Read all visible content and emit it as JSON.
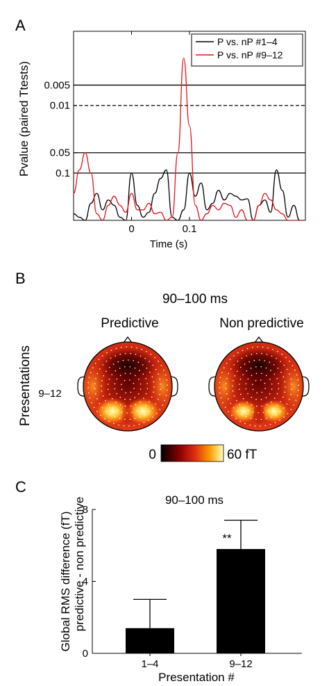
{
  "panels": {
    "a": {
      "letter": "A"
    },
    "b": {
      "letter": "B",
      "title": "90–100 ms",
      "column_labels": [
        "Predictive",
        "Non predictive"
      ],
      "row_label": "Presentations",
      "row_value": "9–12",
      "colorbar": {
        "min_label": "0",
        "max_label": "60 fT"
      }
    },
    "c": {
      "letter": "C"
    }
  },
  "chart_data": [
    {
      "type": "line",
      "ylabel": "Pvalue (paired Ttests)",
      "xlabel": "Time (s)",
      "x_ticks": [
        "0",
        "0.1"
      ],
      "x_tick_values": [
        0,
        0.1
      ],
      "xlim": [
        -0.1,
        0.3
      ],
      "y_scale": "log (inverted)",
      "y_ticks": [
        "0.005",
        "0.01",
        "0.05",
        "0.1"
      ],
      "y_tick_values": [
        0.005,
        0.01,
        0.05,
        0.1
      ],
      "ylim": [
        0.5,
        0.0008
      ],
      "reference_lines": [
        {
          "p": 0.005,
          "style": "solid"
        },
        {
          "p": 0.01,
          "style": "dashed"
        },
        {
          "p": 0.05,
          "style": "solid"
        },
        {
          "p": 0.1,
          "style": "solid"
        }
      ],
      "legend_position": "top-right",
      "series": [
        {
          "name": "P vs. nP #1–4",
          "color": "#000000",
          "x": [
            -0.1,
            -0.09,
            -0.08,
            -0.07,
            -0.06,
            -0.05,
            -0.04,
            -0.03,
            -0.02,
            -0.01,
            0,
            0.01,
            0.02,
            0.03,
            0.04,
            0.05,
            0.06,
            0.07,
            0.08,
            0.09,
            0.1,
            0.11,
            0.12,
            0.13,
            0.14,
            0.15,
            0.16,
            0.17,
            0.18,
            0.19,
            0.2,
            0.21,
            0.22,
            0.23,
            0.24,
            0.25,
            0.26,
            0.27,
            0.28,
            0.29,
            0.3
          ],
          "y": [
            0.4,
            0.45,
            0.5,
            0.28,
            0.2,
            0.35,
            0.25,
            0.3,
            0.45,
            0.5,
            0.1,
            0.3,
            0.45,
            0.38,
            0.2,
            0.12,
            0.09,
            0.45,
            0.5,
            0.35,
            0.1,
            0.22,
            0.14,
            0.35,
            0.28,
            0.18,
            0.25,
            0.2,
            0.22,
            0.25,
            0.24,
            0.5,
            0.3,
            0.25,
            0.38,
            0.09,
            0.18,
            0.45,
            0.3,
            0.5,
            0.5
          ]
        },
        {
          "name": "P vs. nP #9–12",
          "color": "#e8141c",
          "x": [
            -0.1,
            -0.09,
            -0.08,
            -0.07,
            -0.06,
            -0.05,
            -0.04,
            -0.03,
            -0.02,
            -0.01,
            0,
            0.01,
            0.02,
            0.03,
            0.04,
            0.05,
            0.06,
            0.07,
            0.08,
            0.09,
            0.1,
            0.11,
            0.12,
            0.13,
            0.14,
            0.15,
            0.16,
            0.17,
            0.18,
            0.19,
            0.2,
            0.21,
            0.22,
            0.23,
            0.24,
            0.25,
            0.26,
            0.27,
            0.28,
            0.29,
            0.3
          ],
          "y": [
            0.2,
            0.09,
            0.05,
            0.1,
            0.4,
            0.5,
            0.3,
            0.22,
            0.3,
            0.38,
            0.2,
            0.35,
            0.35,
            0.28,
            0.4,
            0.38,
            0.5,
            0.45,
            0.05,
            0.002,
            0.02,
            0.3,
            0.5,
            0.4,
            0.3,
            0.35,
            0.28,
            0.3,
            0.45,
            0.35,
            0.5,
            0.5,
            0.3,
            0.2,
            0.25,
            0.35,
            0.4,
            0.5,
            0.5,
            0.5,
            0.5
          ]
        }
      ]
    },
    {
      "type": "bar",
      "title": "90–100 ms",
      "ylabel": [
        "Global RMS difference (fT)",
        "predictive - non predictive"
      ],
      "xlabel": "Presentation #",
      "categories": [
        "1–4",
        "9–12"
      ],
      "values": [
        1.4,
        5.8
      ],
      "errors": [
        1.6,
        1.6
      ],
      "significance": [
        "",
        "**"
      ],
      "ylim": [
        0,
        8
      ],
      "y_ticks": [
        0,
        4,
        8
      ],
      "bar_color": "#000000"
    }
  ]
}
